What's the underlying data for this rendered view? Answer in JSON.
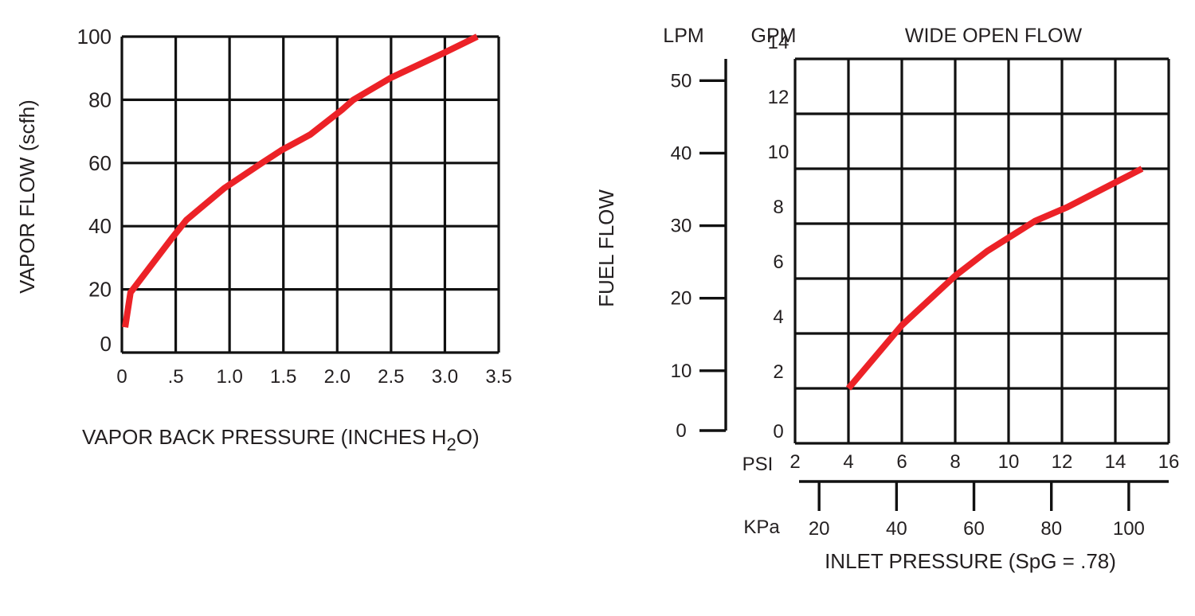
{
  "colors": {
    "curve": "#ec2227",
    "grid": "#111111",
    "text": "#231f20",
    "background": "#ffffff"
  },
  "chart_data": [
    {
      "type": "line",
      "ylabel": "VAPOR FLOW (scfh)",
      "xlabel_main": "VAPOR BACK PRESSURE (INCHES H",
      "xlabel_sub": "2",
      "xlabel_end": "O)",
      "xlim": [
        0,
        3.5
      ],
      "ylim": [
        0,
        100
      ],
      "grid": true,
      "x_ticks": [
        0,
        0.5,
        1.0,
        1.5,
        2.0,
        2.5,
        3.0,
        3.5
      ],
      "x_tick_labels": [
        "0",
        ".5",
        "1.0",
        "1.5",
        "2.0",
        "2.5",
        "3.0",
        "3.5"
      ],
      "y_ticks": [
        0,
        20,
        40,
        60,
        80,
        100
      ],
      "y_tick_labels": [
        "0",
        "20",
        "40",
        "60",
        "80",
        "100"
      ],
      "series": [
        {
          "x": [
            0.03,
            0.08,
            0.46,
            0.6,
            0.95,
            1.3,
            1.48,
            1.75,
            2.05,
            2.15,
            2.5,
            3.0,
            3.3
          ],
          "y": [
            8,
            19,
            36,
            42,
            52,
            60,
            64,
            69,
            77,
            80,
            87,
            95,
            100
          ]
        }
      ]
    },
    {
      "type": "line",
      "title": "WIDE OPEN FLOW",
      "ylabel": "FUEL FLOW",
      "lpm_label": "LPM",
      "gpm_label": "GPM",
      "psi_label": "PSI",
      "kpa_label": "KPa",
      "xlabel": "INLET PRESSURE (SpG = .78)",
      "xlim": [
        2,
        16
      ],
      "ylim": [
        0,
        14
      ],
      "grid": true,
      "x_ticks": [
        2,
        4,
        6,
        8,
        10,
        12,
        14,
        16
      ],
      "x_tick_labels": [
        "2",
        "4",
        "6",
        "8",
        "10",
        "12",
        "14",
        "16"
      ],
      "y_ticks": [
        0,
        2,
        4,
        6,
        8,
        10,
        12,
        14
      ],
      "y_tick_labels": [
        "0",
        "2",
        "4",
        "6",
        "8",
        "10",
        "12",
        "14"
      ],
      "lpm_ticks": [
        0,
        10,
        20,
        30,
        40,
        50
      ],
      "lpm_tick_labels": [
        "0",
        "10",
        "20",
        "30",
        "40",
        "50"
      ],
      "kpa_ticks": [
        20,
        40,
        60,
        80,
        100
      ],
      "kpa_tick_labels": [
        "20",
        "40",
        "60",
        "80",
        "100"
      ],
      "series": [
        {
          "x": [
            4,
            6,
            8,
            9.2,
            11,
            12.2,
            15
          ],
          "y": [
            2,
            4.3,
            6.1,
            7.0,
            8.1,
            8.6,
            10
          ]
        }
      ]
    }
  ]
}
